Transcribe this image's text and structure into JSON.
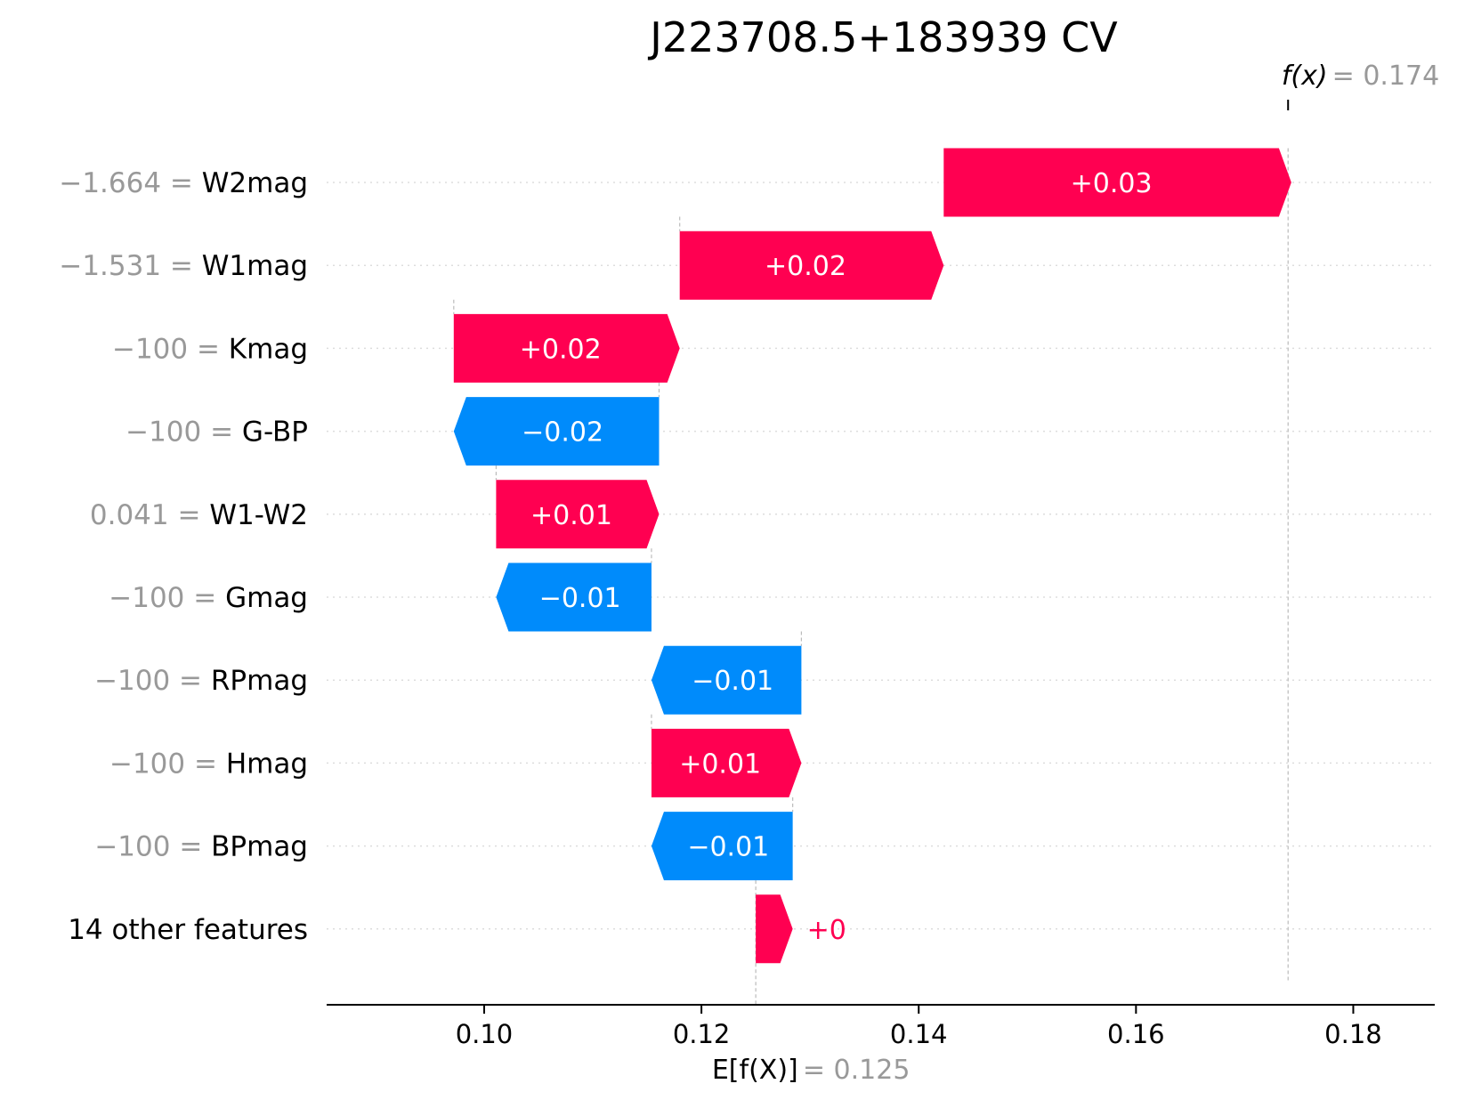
{
  "chart_data": {
    "type": "bar",
    "subtype": "waterfall",
    "title": "J223708.5+183939 CV",
    "base_value": 0.125,
    "final_value": 0.174,
    "base_label": "E[f(X)]",
    "base_value_text": "0.125",
    "final_label": "f(x)",
    "final_value_text": "0.174",
    "xlim": [
      0.0855,
      0.1875
    ],
    "xticks": [
      0.1,
      0.12,
      0.14,
      0.16,
      0.18
    ],
    "xtick_labels": [
      "0.10",
      "0.12",
      "0.14",
      "0.16",
      "0.18"
    ],
    "grid": "dotted horizontal guides per row",
    "colors": {
      "positive": "#ff0051",
      "negative": "#008bfb",
      "muted": "#999999",
      "connector": "#bbbbbb"
    },
    "rows": [
      {
        "feature_value": "−1.664",
        "feature": "W2mag",
        "start": 0.1423,
        "end": 0.1743,
        "label": "+0.03"
      },
      {
        "feature_value": "−1.531",
        "feature": "W1mag",
        "start": 0.118,
        "end": 0.1423,
        "label": "+0.02"
      },
      {
        "feature_value": "−100",
        "feature": "Kmag",
        "start": 0.0972,
        "end": 0.118,
        "label": "+0.02"
      },
      {
        "feature_value": "−100",
        "feature": "G-BP",
        "start": 0.1161,
        "end": 0.0972,
        "label": "−0.02"
      },
      {
        "feature_value": "0.041",
        "feature": "W1-W2",
        "start": 0.1011,
        "end": 0.1161,
        "label": "+0.01"
      },
      {
        "feature_value": "−100",
        "feature": "Gmag",
        "start": 0.1154,
        "end": 0.1011,
        "label": "−0.01"
      },
      {
        "feature_value": "−100",
        "feature": "RPmag",
        "start": 0.1292,
        "end": 0.1154,
        "label": "−0.01"
      },
      {
        "feature_value": "−100",
        "feature": "Hmag",
        "start": 0.1154,
        "end": 0.1292,
        "label": "+0.01"
      },
      {
        "feature_value": "−100",
        "feature": "BPmag",
        "start": 0.1284,
        "end": 0.1154,
        "label": "−0.01"
      },
      {
        "feature_value": "",
        "feature": "14 other features",
        "start": 0.125,
        "end": 0.1284,
        "label": "+0"
      }
    ]
  }
}
